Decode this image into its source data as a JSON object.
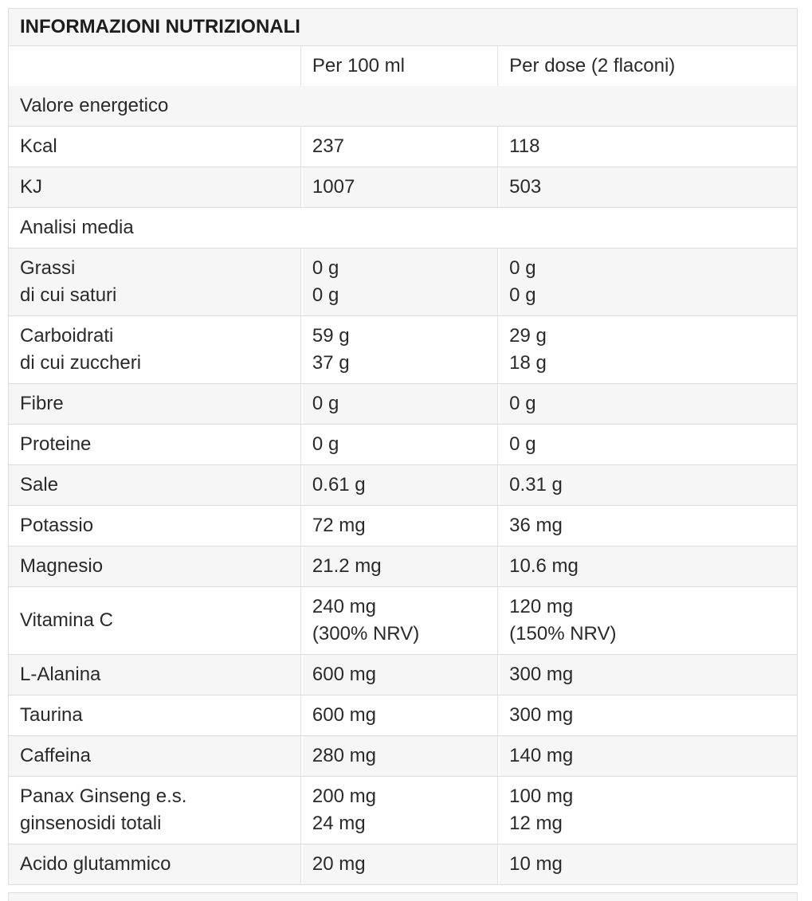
{
  "table": {
    "title": "INFORMAZIONI NUTRIZIONALI",
    "columns": {
      "label": "",
      "per100": "Per 100 ml",
      "per_dose": "Per dose (2 flaconi)"
    },
    "colors": {
      "stripe": "#f6f6f6",
      "border": "#dcdcdc",
      "text": "#2a2a2a"
    },
    "rows": [
      {
        "type": "section",
        "label": "Valore energetico"
      },
      {
        "type": "data",
        "label": "Kcal",
        "per100": "237",
        "per_dose": "118"
      },
      {
        "type": "data",
        "label": "KJ",
        "per100": "1007",
        "per_dose": "503"
      },
      {
        "type": "section",
        "label": "Analisi media"
      },
      {
        "type": "data",
        "label": "Grassi\ndi cui saturi",
        "per100": "0 g\n0 g",
        "per_dose": "0 g\n0 g"
      },
      {
        "type": "data",
        "label": "Carboidrati\ndi cui zuccheri",
        "per100": "59 g\n37 g",
        "per_dose": "29 g\n18 g"
      },
      {
        "type": "data",
        "label": "Fibre",
        "per100": "0 g",
        "per_dose": "0 g"
      },
      {
        "type": "data",
        "label": "Proteine",
        "per100": "0 g",
        "per_dose": "0 g"
      },
      {
        "type": "data",
        "label": "Sale",
        "per100": "0.61 g",
        "per_dose": "0.31 g"
      },
      {
        "type": "data",
        "label": "Potassio",
        "per100": "72 mg",
        "per_dose": "36 mg"
      },
      {
        "type": "data",
        "label": "Magnesio",
        "per100": "21.2 mg",
        "per_dose": "10.6 mg"
      },
      {
        "type": "data",
        "label": "Vitamina C",
        "per100": "240 mg\n(300% NRV)",
        "per_dose": "120 mg\n(150% NRV)"
      },
      {
        "type": "data",
        "label": "L-Alanina",
        "per100": "600 mg",
        "per_dose": "300 mg"
      },
      {
        "type": "data",
        "label": "Taurina",
        "per100": "600 mg",
        "per_dose": "300 mg"
      },
      {
        "type": "data",
        "label": "Caffeina",
        "per100": "280 mg",
        "per_dose": "140 mg"
      },
      {
        "type": "data",
        "label": "Panax Ginseng e.s.\nginsenosidi totali",
        "per100": "200 mg\n24 mg",
        "per_dose": "100 mg\n12 mg"
      },
      {
        "type": "data",
        "label": "Acido glutammico",
        "per100": "20 mg",
        "per_dose": "10 mg"
      }
    ]
  }
}
